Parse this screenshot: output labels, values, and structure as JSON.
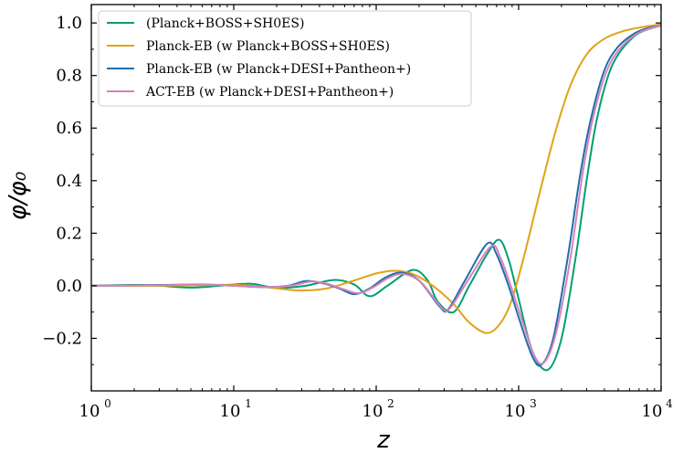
{
  "chart_data": {
    "type": "line",
    "title": "",
    "xlabel": "z",
    "ylabel": "φ/φ₀",
    "xscale": "log",
    "xlim": [
      1,
      10000
    ],
    "ylim": [
      -0.4,
      1.07
    ],
    "x_ticks": [
      {
        "base": "10",
        "exp": "0",
        "value": 1
      },
      {
        "base": "10",
        "exp": "1",
        "value": 10
      },
      {
        "base": "10",
        "exp": "2",
        "value": 100
      },
      {
        "base": "10",
        "exp": "3",
        "value": 1000
      },
      {
        "base": "10",
        "exp": "4",
        "value": 10000
      }
    ],
    "y_ticks": [
      {
        "label": "−0.2",
        "value": -0.2
      },
      {
        "label": "0.0",
        "value": 0.0
      },
      {
        "label": "0.2",
        "value": 0.2
      },
      {
        "label": "0.4",
        "value": 0.4
      },
      {
        "label": "0.6",
        "value": 0.6
      },
      {
        "label": "0.8",
        "value": 0.8
      },
      {
        "label": "1.0",
        "value": 1.0
      }
    ],
    "legend_position": "top-left",
    "series": [
      {
        "name": "(Planck+BOSS+SH0ES)",
        "color": "#009e73",
        "points": [
          [
            1,
            0
          ],
          [
            2,
            0.003
          ],
          [
            3,
            0
          ],
          [
            5,
            -0.007
          ],
          [
            8,
            0
          ],
          [
            13,
            0.008
          ],
          [
            20,
            -0.008
          ],
          [
            32,
            0
          ],
          [
            50,
            0.022
          ],
          [
            70,
            0.005
          ],
          [
            90,
            -0.04
          ],
          [
            120,
            0
          ],
          [
            180,
            0.06
          ],
          [
            230,
            0.02
          ],
          [
            270,
            -0.06
          ],
          [
            350,
            -0.1
          ],
          [
            450,
            0
          ],
          [
            600,
            0.12
          ],
          [
            730,
            0.175
          ],
          [
            850,
            0.1
          ],
          [
            1000,
            -0.05
          ],
          [
            1250,
            -0.25
          ],
          [
            1600,
            -0.32
          ],
          [
            2000,
            -0.2
          ],
          [
            2500,
            0.1
          ],
          [
            3000,
            0.4
          ],
          [
            3500,
            0.62
          ],
          [
            4200,
            0.79
          ],
          [
            5000,
            0.88
          ],
          [
            6500,
            0.95
          ],
          [
            8000,
            0.975
          ],
          [
            10000,
            0.99
          ]
        ]
      },
      {
        "name": "Planck-EB (w Planck+BOSS+SH0ES)",
        "color": "#e0a316",
        "points": [
          [
            1,
            0
          ],
          [
            3,
            0
          ],
          [
            6,
            0.002
          ],
          [
            10,
            0.004
          ],
          [
            15,
            -0.002
          ],
          [
            20,
            -0.01
          ],
          [
            30,
            -0.018
          ],
          [
            45,
            -0.01
          ],
          [
            70,
            0.02
          ],
          [
            100,
            0.047
          ],
          [
            135,
            0.057
          ],
          [
            180,
            0.045
          ],
          [
            250,
            0
          ],
          [
            350,
            -0.07
          ],
          [
            450,
            -0.14
          ],
          [
            600,
            -0.18
          ],
          [
            750,
            -0.14
          ],
          [
            900,
            -0.05
          ],
          [
            1100,
            0.12
          ],
          [
            1400,
            0.35
          ],
          [
            1800,
            0.58
          ],
          [
            2300,
            0.76
          ],
          [
            3000,
            0.88
          ],
          [
            4000,
            0.94
          ],
          [
            5500,
            0.97
          ],
          [
            7500,
            0.985
          ],
          [
            10000,
            0.995
          ]
        ]
      },
      {
        "name": "Planck-EB (w Planck+DESI+Pantheon+)",
        "color": "#1f6eb0",
        "points": [
          [
            1,
            0
          ],
          [
            3,
            0.003
          ],
          [
            6,
            0.005
          ],
          [
            10,
            0
          ],
          [
            16,
            -0.005
          ],
          [
            24,
            0
          ],
          [
            32,
            0.018
          ],
          [
            42,
            0.01
          ],
          [
            55,
            -0.01
          ],
          [
            70,
            -0.032
          ],
          [
            90,
            -0.01
          ],
          [
            115,
            0.03
          ],
          [
            150,
            0.05
          ],
          [
            200,
            0.02
          ],
          [
            280,
            -0.08
          ],
          [
            320,
            -0.09
          ],
          [
            420,
            0.02
          ],
          [
            600,
            0.16
          ],
          [
            700,
            0.12
          ],
          [
            850,
            0
          ],
          [
            1000,
            -0.12
          ],
          [
            1250,
            -0.27
          ],
          [
            1450,
            -0.3
          ],
          [
            1750,
            -0.2
          ],
          [
            2200,
            0.1
          ],
          [
            2700,
            0.42
          ],
          [
            3200,
            0.63
          ],
          [
            4000,
            0.82
          ],
          [
            5000,
            0.91
          ],
          [
            6500,
            0.96
          ],
          [
            8000,
            0.98
          ],
          [
            10000,
            0.99
          ]
        ]
      },
      {
        "name": "ACT-EB (w Planck+DESI+Pantheon+)",
        "color": "#d683b9",
        "points": [
          [
            1,
            0
          ],
          [
            3,
            0.002
          ],
          [
            6,
            0.004
          ],
          [
            10,
            0
          ],
          [
            17,
            -0.005
          ],
          [
            25,
            0
          ],
          [
            35,
            0.016
          ],
          [
            45,
            0.008
          ],
          [
            58,
            -0.012
          ],
          [
            75,
            -0.028
          ],
          [
            95,
            -0.006
          ],
          [
            122,
            0.03
          ],
          [
            155,
            0.045
          ],
          [
            205,
            0.015
          ],
          [
            290,
            -0.085
          ],
          [
            330,
            -0.085
          ],
          [
            440,
            0.02
          ],
          [
            640,
            0.15
          ],
          [
            740,
            0.11
          ],
          [
            880,
            0
          ],
          [
            1040,
            -0.12
          ],
          [
            1300,
            -0.27
          ],
          [
            1520,
            -0.29
          ],
          [
            1830,
            -0.18
          ],
          [
            2300,
            0.1
          ],
          [
            2800,
            0.42
          ],
          [
            3300,
            0.63
          ],
          [
            4100,
            0.81
          ],
          [
            5100,
            0.9
          ],
          [
            6600,
            0.955
          ],
          [
            8200,
            0.978
          ],
          [
            10000,
            0.99
          ]
        ]
      }
    ]
  }
}
